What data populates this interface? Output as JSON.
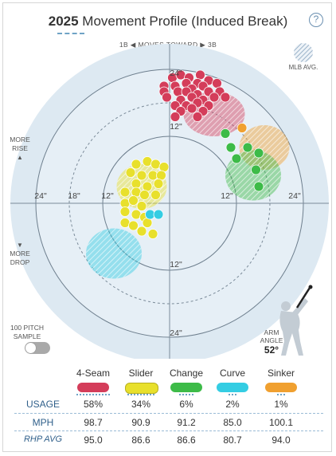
{
  "header": {
    "year": "2025",
    "title_rest": "Movement Profile (Induced Break)",
    "help_label": "?"
  },
  "moves_toward": {
    "left": "1B",
    "middle": "MOVES TOWARD",
    "right": "3B"
  },
  "mlb_avg_label": "MLB AVG.",
  "side_labels": {
    "more_rise": "MORE RISE",
    "more_drop": "MORE DROP"
  },
  "ring_labels": {
    "top_24": "24\"",
    "top_12": "12\"",
    "left_24": "24\"",
    "left_18": "18\"",
    "left_12": "12\"",
    "right_12": "12\"",
    "right_24": "24\"",
    "bottom_12": "12\"",
    "bottom_24": "24\""
  },
  "sample_toggle": {
    "label": "100 PITCH SAMPLE",
    "enabled": false
  },
  "arm_angle": {
    "label": "ARM ANGLE",
    "value": "52°"
  },
  "pitches": [
    {
      "name": "4-Seam",
      "color": "#d43d5a",
      "usage": "58%",
      "mph": "98.7",
      "rhp_avg": "95.0"
    },
    {
      "name": "Slider",
      "color": "#e8e02c",
      "usage": "34%",
      "mph": "90.9",
      "rhp_avg": "86.6"
    },
    {
      "name": "Change",
      "color": "#3dbb48",
      "usage": "6%",
      "mph": "91.2",
      "rhp_avg": "86.6"
    },
    {
      "name": "Curve",
      "color": "#34cde3",
      "usage": "2%",
      "mph": "85.0",
      "rhp_avg": "80.7"
    },
    {
      "name": "Sinker",
      "color": "#f0a030",
      "usage": "1%",
      "mph": "100.1",
      "rhp_avg": "94.0"
    }
  ],
  "row_labels": {
    "usage": "USAGE",
    "mph": "MPH",
    "rhp_avg": "RHP AVG"
  },
  "chart_data": {
    "type": "scatter",
    "xlabel": "",
    "ylabel": "",
    "x_unit": "inches horizontal break (positive toward 3B)",
    "y_unit": "inches induced vertical break",
    "rings": [
      12,
      18,
      24
    ],
    "xlim": [
      -28,
      28
    ],
    "ylim": [
      -28,
      28
    ],
    "mlb_avg_regions": [
      {
        "pitch": "4-Seam",
        "cx": 8,
        "cy": 16,
        "rx": 5.5,
        "ry": 4.0
      },
      {
        "pitch": "Sinker",
        "cx": 17,
        "cy": 10,
        "rx": 4.5,
        "ry": 4.0
      },
      {
        "pitch": "Change",
        "cx": 15,
        "cy": 5,
        "rx": 5,
        "ry": 4.5
      },
      {
        "pitch": "Slider",
        "cx": -5,
        "cy": 3,
        "rx": 4.5,
        "ry": 4.0
      },
      {
        "pitch": "Curve",
        "cx": -10,
        "cy": -9,
        "rx": 5.0,
        "ry": 4.5
      }
    ],
    "series": [
      {
        "name": "4-Seam",
        "points": [
          [
            0.5,
            22.5
          ],
          [
            2,
            23
          ],
          [
            3.5,
            22.5
          ],
          [
            5.5,
            23
          ],
          [
            7,
            22
          ],
          [
            3,
            21.5
          ],
          [
            5,
            21.5
          ],
          [
            -1,
            21
          ],
          [
            1,
            21
          ],
          [
            4,
            20.5
          ],
          [
            6,
            21
          ],
          [
            8.5,
            21.5
          ],
          [
            -1,
            20
          ],
          [
            1.5,
            20
          ],
          [
            3,
            20
          ],
          [
            5,
            19.5
          ],
          [
            7,
            20
          ],
          [
            9,
            20
          ],
          [
            -0.5,
            19
          ],
          [
            2,
            18.5
          ],
          [
            4,
            19
          ],
          [
            6,
            18.5
          ],
          [
            8,
            19
          ],
          [
            10,
            19
          ],
          [
            1,
            17.5
          ],
          [
            3,
            17.5
          ],
          [
            5,
            18
          ],
          [
            7,
            17.5
          ],
          [
            2,
            16.5
          ],
          [
            4,
            17
          ],
          [
            6,
            16.5
          ],
          [
            1,
            15.5
          ],
          [
            5,
            15.5
          ]
        ]
      },
      {
        "name": "Slider",
        "points": [
          [
            -6,
            7
          ],
          [
            -4,
            7.5
          ],
          [
            -2.5,
            7
          ],
          [
            -1,
            6.5
          ],
          [
            -7,
            5.5
          ],
          [
            -5,
            5
          ],
          [
            -3,
            5
          ],
          [
            -1.5,
            5
          ],
          [
            -6,
            3.5
          ],
          [
            -4,
            3
          ],
          [
            -2,
            3.5
          ],
          [
            -8,
            2
          ],
          [
            -6,
            2
          ],
          [
            -4.5,
            1.5
          ],
          [
            -2.5,
            1.5
          ],
          [
            -8,
            0
          ],
          [
            -6.5,
            0.5
          ],
          [
            -5,
            -0.5
          ],
          [
            -8,
            -1.5
          ],
          [
            -6,
            -2
          ],
          [
            -4.5,
            -2.5
          ],
          [
            -8,
            -3.5
          ],
          [
            -6.5,
            -4
          ],
          [
            -4,
            -3.5
          ],
          [
            -5,
            -5
          ],
          [
            -3,
            -5.5
          ]
        ]
      },
      {
        "name": "Change",
        "points": [
          [
            10,
            12.5
          ],
          [
            11,
            10
          ],
          [
            14,
            10
          ],
          [
            12,
            8
          ],
          [
            16,
            9
          ],
          [
            15.5,
            6
          ],
          [
            16,
            3
          ]
        ]
      },
      {
        "name": "Curve",
        "points": [
          [
            -3.5,
            -2
          ],
          [
            -2,
            -2
          ]
        ]
      },
      {
        "name": "Sinker",
        "points": [
          [
            13,
            13.5
          ]
        ]
      }
    ]
  }
}
